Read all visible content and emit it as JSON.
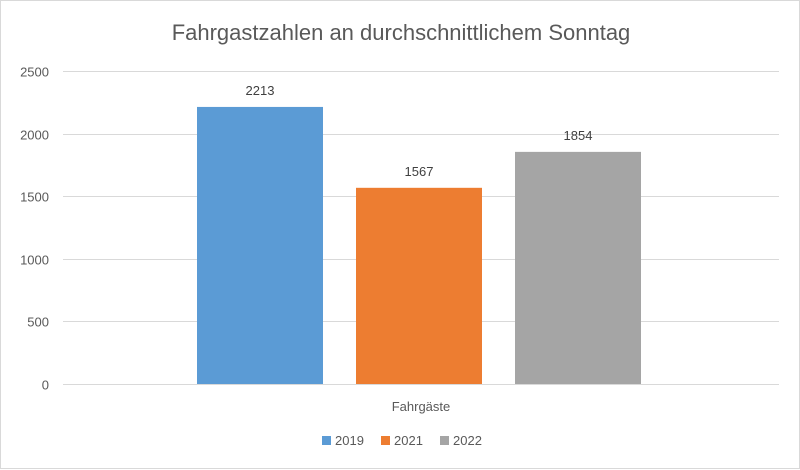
{
  "chart_data": {
    "type": "bar",
    "title": "Fahrgastzahlen an durchschnittlichem Sonntag",
    "categories": [
      "Fahrgäste"
    ],
    "series": [
      {
        "name": "2019",
        "values": [
          2213
        ],
        "color": "#5b9bd5"
      },
      {
        "name": "2021",
        "values": [
          1567
        ],
        "color": "#ed7d31"
      },
      {
        "name": "2022",
        "values": [
          1854
        ],
        "color": "#a5a5a5"
      }
    ],
    "ylim": [
      0,
      2500
    ],
    "yticks": [
      "0",
      "500",
      "1000",
      "1500",
      "2000",
      "2500"
    ],
    "grid": true,
    "legend_position": "bottom",
    "data_labels": true
  }
}
